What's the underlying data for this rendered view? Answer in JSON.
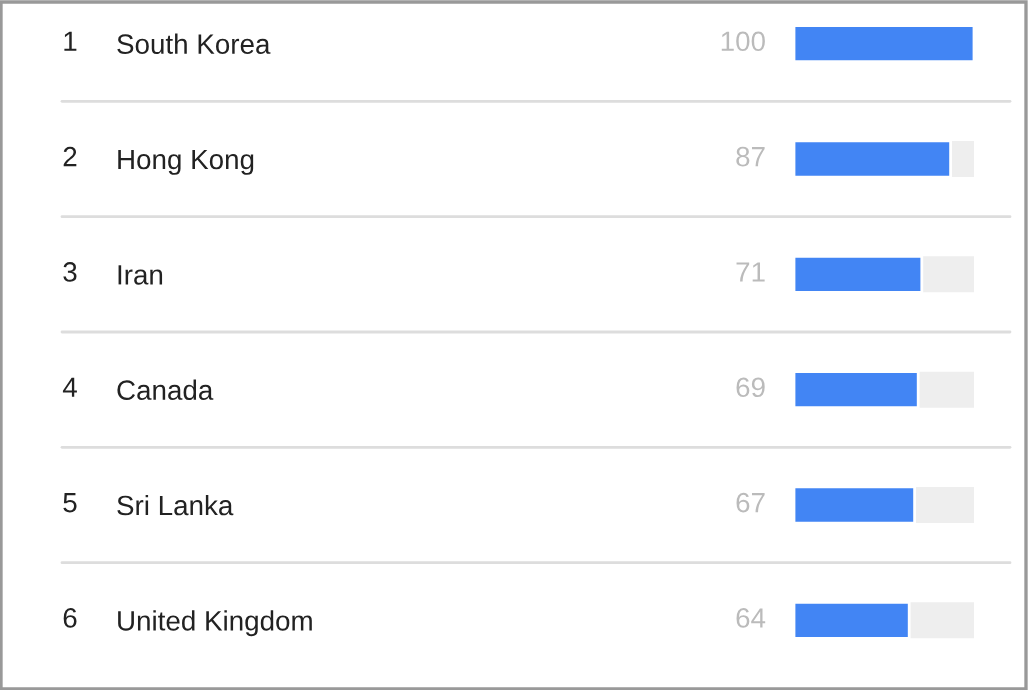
{
  "chart_data": {
    "type": "bar",
    "orientation": "horizontal",
    "categories": [
      "South Korea",
      "Hong Kong",
      "Iran",
      "Canada",
      "Sri Lanka",
      "United Kingdom"
    ],
    "values": [
      100,
      87,
      71,
      69,
      67,
      64
    ],
    "color": "#4285f4",
    "data_labels": true,
    "xlim": [
      0,
      100
    ],
    "annotations": [
      "1",
      "2",
      "3",
      "4",
      "5",
      "6"
    ]
  }
}
